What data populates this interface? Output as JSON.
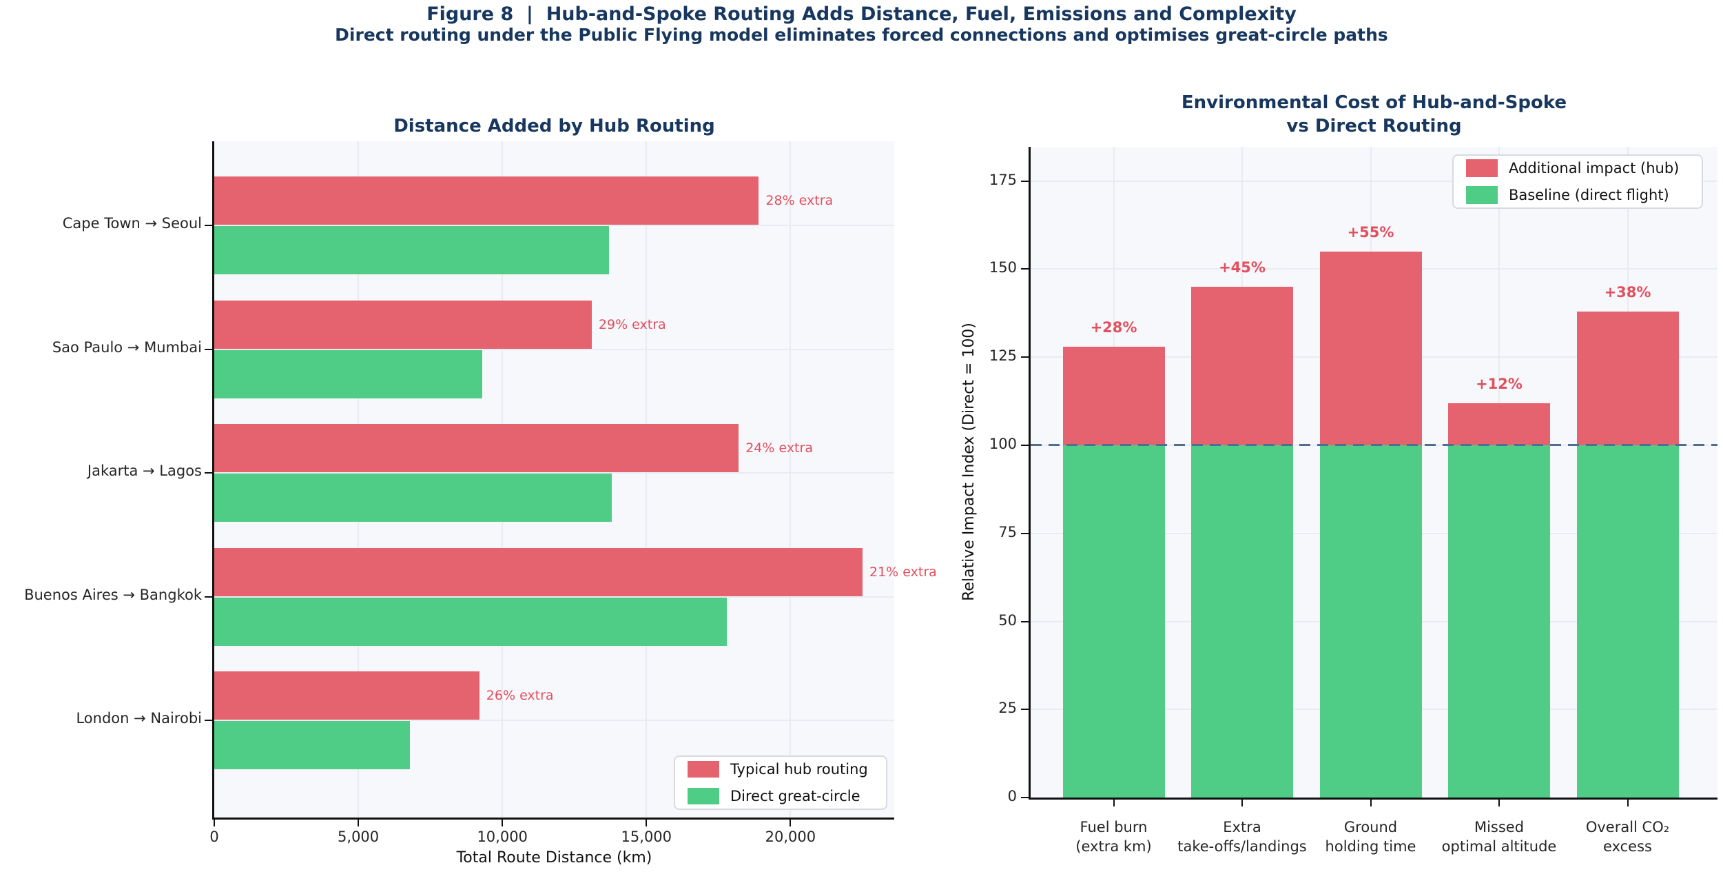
{
  "figure": {
    "title": "Figure 8  |  Hub-and-Spoke Routing Adds Distance, Fuel, Emissions and Complexity",
    "subtitle": "Direct routing under the Public Flying model eliminates forced connections and optimises great-circle paths"
  },
  "colors": {
    "hub_red": "#e5636f",
    "direct_green": "#4fcd87",
    "navy_title": "#17375e",
    "annotation_red": "#e24f5d",
    "dashed_line": "#4f6f91",
    "grid": "#e9ebf2",
    "plot_bg": "#f7f8fc",
    "spine": "#111111",
    "tick_text": "#262626",
    "legend_border": "#d8dadf",
    "legend_bg": "#ffffff"
  },
  "chart_data": [
    {
      "type": "bar",
      "orientation": "horizontal",
      "title": "Distance Added by Hub Routing",
      "xlabel": "Total Route Distance (km)",
      "categories": [
        "Cape Town → Seoul",
        "Sao Paulo → Mumbai",
        "Jakarta → Lagos",
        "Buenos Aires → Bangkok",
        "London → Nairobi"
      ],
      "series": [
        {
          "name": "Typical hub routing",
          "color_key": "hub_red",
          "values": [
            18900,
            13100,
            18200,
            22500,
            9200
          ]
        },
        {
          "name": "Direct great-circle",
          "color_key": "direct_green",
          "values": [
            13700,
            9300,
            13800,
            17800,
            6800
          ]
        }
      ],
      "annotations": [
        "28% extra",
        "29% extra",
        "24% extra",
        "21% extra",
        "26% extra"
      ],
      "xlim": [
        0,
        23600
      ],
      "xticks": [
        0,
        5000,
        10000,
        15000,
        20000
      ],
      "xtick_labels": [
        "0",
        "5,000",
        "10,000",
        "15,000",
        "20,000"
      ],
      "grid": true,
      "legend_position": "lower right",
      "legend": [
        {
          "label": "Typical hub routing",
          "color_key": "hub_red"
        },
        {
          "label": "Direct great-circle",
          "color_key": "direct_green"
        }
      ]
    },
    {
      "type": "bar",
      "orientation": "vertical",
      "stacked": true,
      "title_lines": [
        "Environmental Cost of Hub-and-Spoke",
        "vs Direct Routing"
      ],
      "ylabel": "Relative Impact Index (Direct = 100)",
      "categories_lines": [
        [
          "Fuel burn",
          "(extra km)"
        ],
        [
          "Extra",
          "take-offs/landings"
        ],
        [
          "Ground",
          "holding time"
        ],
        [
          "Missed",
          "optimal altitude"
        ],
        [
          "Overall CO₂",
          "excess"
        ]
      ],
      "series": [
        {
          "name": "Baseline (direct flight)",
          "color_key": "direct_green",
          "values": [
            100,
            100,
            100,
            100,
            100
          ]
        },
        {
          "name": "Additional impact (hub)",
          "color_key": "hub_red",
          "values": [
            28,
            45,
            55,
            12,
            38
          ]
        }
      ],
      "totals": [
        128,
        145,
        155,
        112,
        138
      ],
      "annotations": [
        "+28%",
        "+45%",
        "+55%",
        "+12%",
        "+38%"
      ],
      "baseline": 100,
      "ylim": [
        0,
        185
      ],
      "yticks": [
        0,
        25,
        50,
        75,
        100,
        125,
        150,
        175
      ],
      "grid": true,
      "legend_position": "upper right",
      "legend": [
        {
          "label": "Additional impact (hub)",
          "color_key": "hub_red"
        },
        {
          "label": "Baseline (direct flight)",
          "color_key": "direct_green"
        }
      ]
    }
  ]
}
